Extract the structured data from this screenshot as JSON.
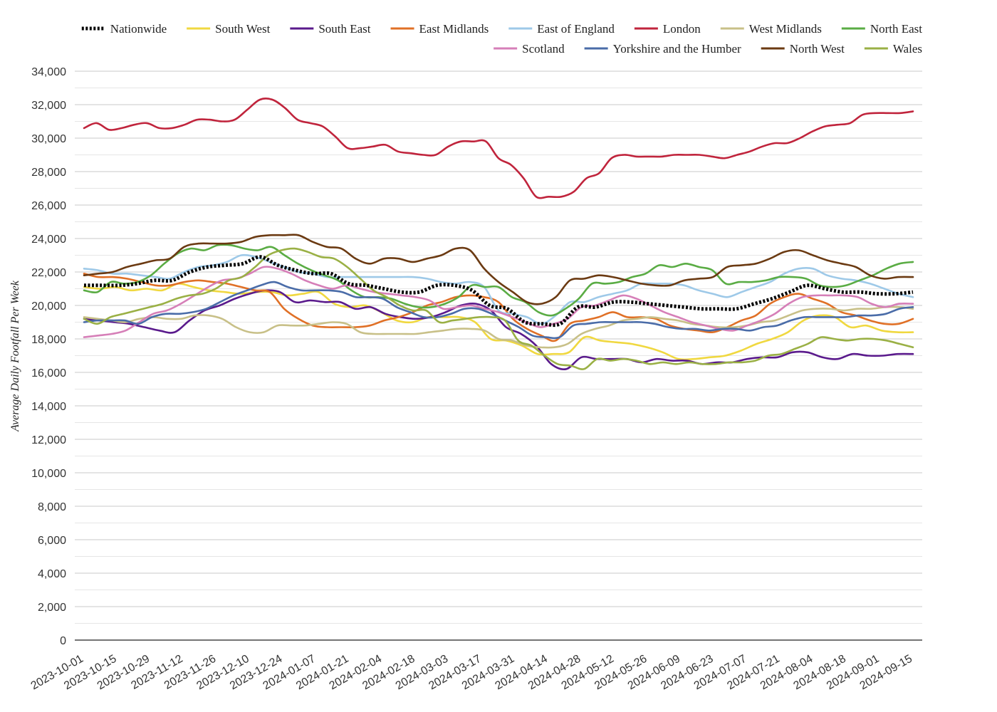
{
  "chart_data": {
    "type": "line",
    "ylabel": "Average Daily Footfall Per Week",
    "xlabel": "",
    "ylim": [
      0,
      34000
    ],
    "ytick_step": 2000,
    "grid": true,
    "legend_position": "top-right",
    "x_tick_labels": [
      "2023-10-01",
      "2023-10-15",
      "2023-10-29",
      "2023-11-12",
      "2023-11-26",
      "2023-12-10",
      "2023-12-24",
      "2024-01-07",
      "2024-01-21",
      "2024-02-04",
      "2024-02-18",
      "2024-03-03",
      "2024-03-17",
      "2024-03-31",
      "2024-04-14",
      "2024-04-28",
      "2024-05-12",
      "2024-05-26",
      "2024-06-09",
      "2024-06-23",
      "2024-07-07",
      "2024-07-21",
      "2024-08-04",
      "2024-08-18",
      "2024-09-01",
      "2024-09-15"
    ],
    "series": [
      {
        "name": "Nationwide",
        "color": "#000000",
        "style": "dotted",
        "values": [
          21200,
          21200,
          21200,
          21300,
          21500,
          21500,
          22000,
          22300,
          22400,
          22500,
          22900,
          22400,
          22100,
          21900,
          21900,
          21300,
          21200,
          21000,
          20800,
          20800,
          21200,
          21200,
          20900,
          20000,
          19800,
          19000,
          18900,
          18900,
          19900,
          19900,
          20200,
          20200,
          20100,
          20000,
          19900,
          19800,
          19800,
          19800,
          20100,
          20400,
          20800,
          21200,
          21000,
          20800,
          20800,
          20700,
          20700,
          20800
        ]
      },
      {
        "name": "South West",
        "color": "#f0d840",
        "style": "solid",
        "values": [
          21100,
          21000,
          21100,
          20900,
          21000,
          20900,
          21300,
          21100,
          20900,
          20800,
          20700,
          20800,
          20800,
          20600,
          20700,
          20800,
          20100,
          19900,
          20000,
          19600,
          19100,
          19000,
          19300,
          19300,
          19300,
          19000,
          18000,
          17900,
          17600,
          17100,
          17100,
          17200,
          18100,
          17900,
          17800,
          17700,
          17500,
          17200,
          16800,
          16800,
          16900,
          17000,
          17300,
          17700,
          18000,
          18400,
          19100,
          19400,
          19300,
          18700,
          18800,
          18500,
          18400,
          18400
        ]
      },
      {
        "name": "South East",
        "color": "#5a1a8c",
        "style": "solid",
        "values": [
          19200,
          19100,
          19000,
          18900,
          18700,
          18500,
          18400,
          19100,
          19700,
          20000,
          20400,
          20700,
          20900,
          20800,
          20200,
          20300,
          20200,
          20200,
          19800,
          19900,
          19500,
          19300,
          19200,
          19300,
          19600,
          20000,
          20100,
          19700,
          18700,
          18300,
          17600,
          16500,
          16200,
          16900,
          16800,
          16800,
          16800,
          16600,
          16800,
          16700,
          16700,
          16500,
          16600,
          16600,
          16800,
          16900,
          16900,
          17200,
          17200,
          16900,
          16800,
          17100,
          17000,
          17000,
          17100,
          17100
        ]
      },
      {
        "name": "East Midlands",
        "color": "#e07026",
        "style": "solid",
        "values": [
          21900,
          21700,
          21700,
          21600,
          21400,
          21200,
          21200,
          21400,
          21500,
          21400,
          21300,
          21100,
          20900,
          20800,
          19800,
          19200,
          18800,
          18700,
          18700,
          18700,
          18800,
          19100,
          19300,
          19600,
          20000,
          20200,
          20500,
          20600,
          20500,
          20200,
          19200,
          18600,
          18200,
          17900,
          18900,
          19100,
          19300,
          19600,
          19300,
          19300,
          19200,
          18800,
          18600,
          18500,
          18400,
          18700,
          19100,
          19400,
          20100,
          20500,
          20700,
          20400,
          20100,
          19600,
          19400,
          19100,
          18900,
          18900,
          19200
        ]
      },
      {
        "name": "East of England",
        "color": "#9ec9e8",
        "style": "solid",
        "values": [
          22200,
          22100,
          21900,
          21900,
          21800,
          21700,
          21600,
          22000,
          22300,
          22400,
          22600,
          23000,
          22900,
          22600,
          22300,
          22000,
          21900,
          21700,
          21700,
          21700,
          21700,
          21700,
          21700,
          21700,
          21600,
          21400,
          21300,
          21400,
          21100,
          19700,
          19500,
          19300,
          18900,
          19400,
          20200,
          20200,
          20500,
          20700,
          20900,
          21300,
          21300,
          21300,
          21200,
          20900,
          20700,
          20500,
          20800,
          21100,
          21400,
          21900,
          22200,
          22200,
          21800,
          21600,
          21500,
          21300,
          21000,
          20700,
          20500
        ]
      },
      {
        "name": "London",
        "color": "#c0243c",
        "style": "solid",
        "values": [
          30600,
          30900,
          30500,
          30600,
          30800,
          30900,
          30600,
          30600,
          30800,
          31100,
          31100,
          31000,
          31100,
          31700,
          32300,
          32300,
          31800,
          31100,
          30900,
          30700,
          30100,
          29400,
          29400,
          29500,
          29600,
          29200,
          29100,
          29000,
          29000,
          29500,
          29800,
          29800,
          29800,
          28800,
          28400,
          27600,
          26500,
          26500,
          26500,
          26800,
          27600,
          27900,
          28800,
          29000,
          28900,
          28900,
          28900,
          29000,
          29000,
          29000,
          28900,
          28800,
          29000,
          29200,
          29500,
          29700,
          29700,
          30000,
          30400,
          30700,
          30800,
          30900,
          31400,
          31500,
          31500,
          31500,
          31600
        ]
      },
      {
        "name": "West Midlands",
        "color": "#c8c088",
        "style": "solid",
        "values": [
          19300,
          19200,
          19100,
          19000,
          19200,
          19300,
          19200,
          19200,
          19400,
          19400,
          19200,
          18700,
          18400,
          18400,
          18800,
          18800,
          18800,
          18900,
          19000,
          18900,
          18400,
          18300,
          18300,
          18300,
          18300,
          18400,
          18500,
          18600,
          18600,
          18500,
          18000,
          17900,
          17600,
          17500,
          17500,
          17700,
          18300,
          18600,
          18800,
          19100,
          19200,
          19300,
          19200,
          19100,
          18900,
          18800,
          18700,
          18700,
          18800,
          19000,
          19100,
          19400,
          19700,
          19800,
          19800,
          19700,
          19800,
          19800,
          19900,
          19900,
          19800
        ]
      },
      {
        "name": "North East",
        "color": "#5aac44",
        "style": "solid",
        "values": [
          20900,
          20800,
          21400,
          21300,
          21400,
          21800,
          22500,
          23100,
          23400,
          23300,
          23600,
          23600,
          23400,
          23300,
          23500,
          23000,
          22500,
          22100,
          21800,
          21500,
          20900,
          20500,
          20500,
          20400,
          20100,
          19900,
          19900,
          20100,
          20500,
          21200,
          21100,
          21100,
          20500,
          20200,
          19600,
          19400,
          19800,
          20400,
          21300,
          21300,
          21400,
          21700,
          21900,
          22400,
          22300,
          22500,
          22300,
          22100,
          21300,
          21400,
          21400,
          21500,
          21700,
          21700,
          21600,
          21200,
          21100,
          21200,
          21500,
          21800,
          22200,
          22500,
          22600
        ]
      },
      {
        "name": "Scotland",
        "color": "#d67fb8",
        "style": "solid",
        "values": [
          18100,
          18200,
          18300,
          18500,
          19000,
          19500,
          19700,
          20100,
          20600,
          21100,
          21500,
          21600,
          21900,
          22300,
          22200,
          21900,
          21500,
          21200,
          21000,
          21200,
          21000,
          20800,
          20700,
          20600,
          20500,
          20300,
          19800,
          19900,
          20000,
          19800,
          19600,
          19300,
          19000,
          18700,
          18900,
          19200,
          19900,
          20000,
          20300,
          20600,
          20400,
          20000,
          19600,
          19300,
          19000,
          18800,
          18600,
          18500,
          18800,
          19100,
          19500,
          20100,
          20500,
          20600,
          20600,
          20600,
          20500,
          20100,
          19900,
          20100,
          20100
        ]
      },
      {
        "name": "Yorkshire and the Humber",
        "color": "#4a6ca8",
        "style": "solid",
        "values": [
          19000,
          19100,
          19100,
          19100,
          18900,
          19300,
          19500,
          19500,
          19600,
          19800,
          20200,
          20600,
          20900,
          21200,
          21400,
          21100,
          20900,
          20900,
          20900,
          20800,
          20500,
          20500,
          20400,
          19900,
          19600,
          19300,
          19300,
          19500,
          19800,
          19800,
          19500,
          19100,
          18700,
          18200,
          18100,
          18100,
          18800,
          18900,
          19000,
          19000,
          19000,
          19000,
          18900,
          18700,
          18600,
          18600,
          18500,
          18600,
          18600,
          18500,
          18700,
          18800,
          19100,
          19300,
          19300,
          19300,
          19300,
          19400,
          19400,
          19500,
          19800,
          19900
        ]
      },
      {
        "name": "North West",
        "color": "#6b3a12",
        "style": "solid",
        "values": [
          21800,
          21900,
          22000,
          22300,
          22500,
          22700,
          22800,
          23500,
          23700,
          23700,
          23700,
          23800,
          24100,
          24200,
          24200,
          24200,
          23800,
          23500,
          23400,
          22800,
          22500,
          22800,
          22800,
          22600,
          22800,
          23000,
          23400,
          23300,
          22200,
          21400,
          20800,
          20200,
          20100,
          20500,
          21500,
          21600,
          21800,
          21700,
          21500,
          21300,
          21200,
          21200,
          21500,
          21600,
          21700,
          22300,
          22400,
          22500,
          22800,
          23200,
          23300,
          23000,
          22700,
          22500,
          22300,
          21800,
          21600,
          21700,
          21700
        ]
      },
      {
        "name": "Wales",
        "color": "#9ab045",
        "style": "solid",
        "values": [
          19200,
          18900,
          19300,
          19500,
          19700,
          19900,
          20100,
          20400,
          20600,
          20700,
          21000,
          21500,
          21700,
          22300,
          23000,
          23300,
          23400,
          23200,
          22900,
          22800,
          22300,
          21600,
          20900,
          20500,
          20000,
          19700,
          19700,
          19000,
          19100,
          19200,
          19300,
          19300,
          19100,
          17900,
          17600,
          17000,
          16500,
          16400,
          16200,
          16800,
          16700,
          16800,
          16700,
          16500,
          16600,
          16500,
          16600,
          16500,
          16500,
          16600,
          16600,
          16700,
          17000,
          17100,
          17400,
          17700,
          18100,
          18000,
          17900,
          18000,
          18000,
          17900,
          17700,
          17500
        ]
      }
    ]
  }
}
